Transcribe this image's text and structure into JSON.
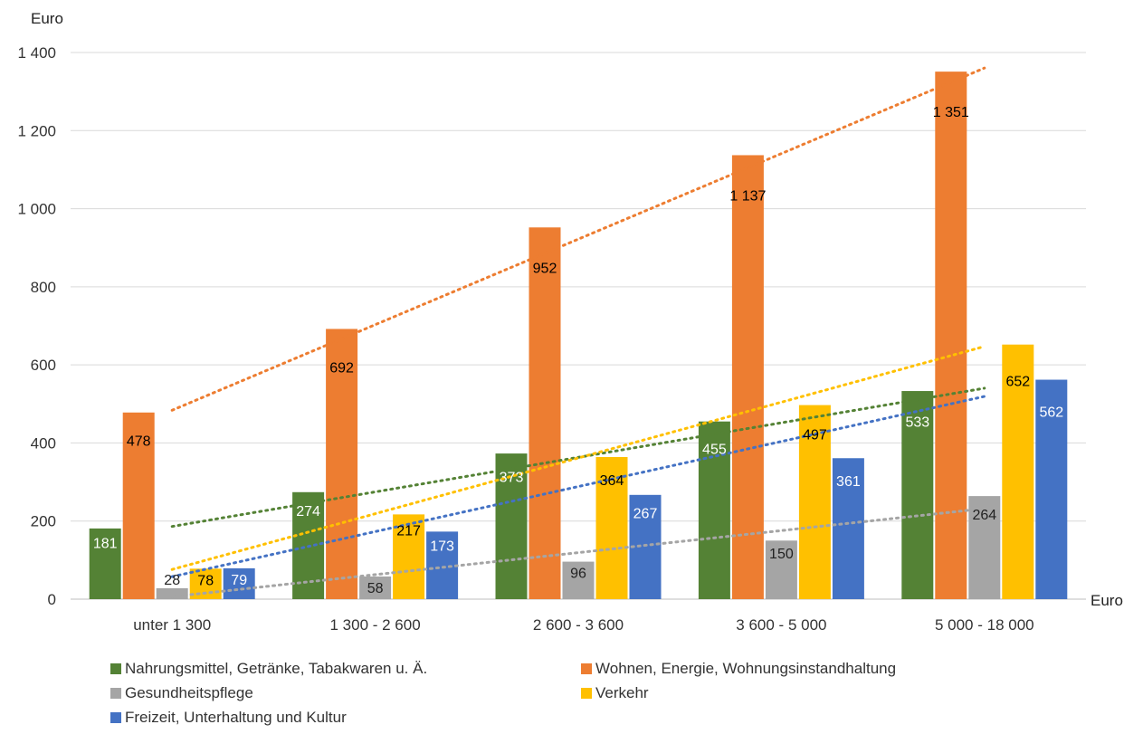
{
  "chart_data": {
    "type": "bar",
    "ylabel": "Euro",
    "xlabel": "Euro",
    "ylim": [
      0,
      1400
    ],
    "yticks": [
      0,
      200,
      400,
      600,
      800,
      1000,
      1200,
      1400
    ],
    "ytick_labels": [
      "0",
      "200",
      "400",
      "600",
      "800",
      "1 000",
      "1 200",
      "1 400"
    ],
    "categories": [
      "unter 1 300",
      "1 300 - 2 600",
      "2 600 - 3 600",
      "3 600 - 5 000",
      "5 000 - 18 000"
    ],
    "grid": true,
    "legend_position": "bottom",
    "trendlines": "linear, dotted, one per series",
    "series": [
      {
        "name": "Nahrungsmittel, Getränke, Tabakwaren u. Ä.",
        "color": "#548235",
        "label_color": "#ffffff",
        "values": [
          181,
          274,
          373,
          455,
          533
        ],
        "labels": [
          "181",
          "274",
          "373",
          "455",
          "533"
        ]
      },
      {
        "name": "Wohnen, Energie, Wohnungsinstandhaltung",
        "color": "#ED7D31",
        "label_color": "#000000",
        "values": [
          478,
          692,
          952,
          1137,
          1351
        ],
        "labels": [
          "478",
          "692",
          "952",
          "1 137",
          "1 351"
        ]
      },
      {
        "name": "Gesundheitspflege",
        "color": "#A5A5A5",
        "label_color": "#222222",
        "values": [
          28,
          58,
          96,
          150,
          264
        ],
        "labels": [
          "28",
          "58",
          "96",
          "150",
          "264"
        ]
      },
      {
        "name": "Verkehr",
        "color": "#FFC000",
        "label_color": "#000000",
        "values": [
          78,
          217,
          364,
          497,
          652
        ],
        "labels": [
          "78",
          "217",
          "364",
          "497",
          "652"
        ]
      },
      {
        "name": "Freizeit, Unterhaltung und Kultur",
        "color": "#4472C4",
        "label_color": "#ffffff",
        "values": [
          79,
          173,
          267,
          361,
          562
        ],
        "labels": [
          "79",
          "173",
          "267",
          "361",
          "562"
        ]
      }
    ]
  }
}
